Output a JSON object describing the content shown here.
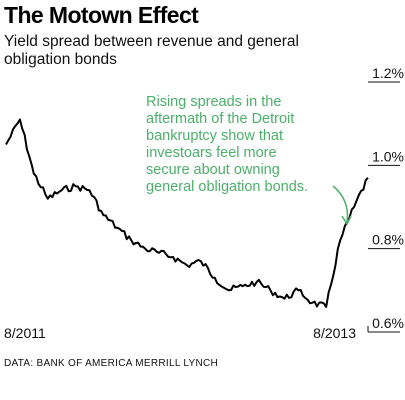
{
  "chart_data": {
    "type": "line",
    "title": "The Motown Effect",
    "subtitle": "Yield spread between revenue and general obligation bonds",
    "x_tick_labels": [
      "8/2011",
      "8/2013"
    ],
    "y_ticks": [
      {
        "value": 1.2,
        "label": "1.2%"
      },
      {
        "value": 1.0,
        "label": "1.0%"
      },
      {
        "value": 0.8,
        "label": "0.8%"
      },
      {
        "value": 0.6,
        "label": "0.6%"
      }
    ],
    "ylim": [
      0.6,
      1.2
    ],
    "xlim": [
      "2011-08",
      "2013-10"
    ],
    "annotation": {
      "lines": [
        "Rising spreads in the",
        "aftermath of the Detroit",
        "bankruptcy show that",
        "investoars feel more",
        "secure about owning",
        "general obligation bonds."
      ],
      "color": "#4caf6a"
    },
    "series": [
      {
        "color": "#000000",
        "x": [
          "2011-08",
          "2011-09",
          "2011-10",
          "2011-11",
          "2011-12",
          "2012-01",
          "2012-02",
          "2012-03",
          "2012-04",
          "2012-05",
          "2012-06",
          "2012-07",
          "2012-08",
          "2012-09",
          "2012-10",
          "2012-11",
          "2012-12",
          "2013-01",
          "2013-02",
          "2013-03",
          "2013-04",
          "2013-05",
          "2013-06",
          "2013-07",
          "2013-08",
          "2013-09",
          "2013-10"
        ],
        "values": [
          1.05,
          1.11,
          0.98,
          0.92,
          0.94,
          0.95,
          0.94,
          0.88,
          0.85,
          0.82,
          0.8,
          0.79,
          0.78,
          0.76,
          0.77,
          0.73,
          0.7,
          0.71,
          0.72,
          0.7,
          0.68,
          0.7,
          0.67,
          0.66,
          0.82,
          0.9,
          0.97
        ]
      }
    ],
    "source": "DATA: BANK OF AMERICA MERRILL LYNCH"
  }
}
